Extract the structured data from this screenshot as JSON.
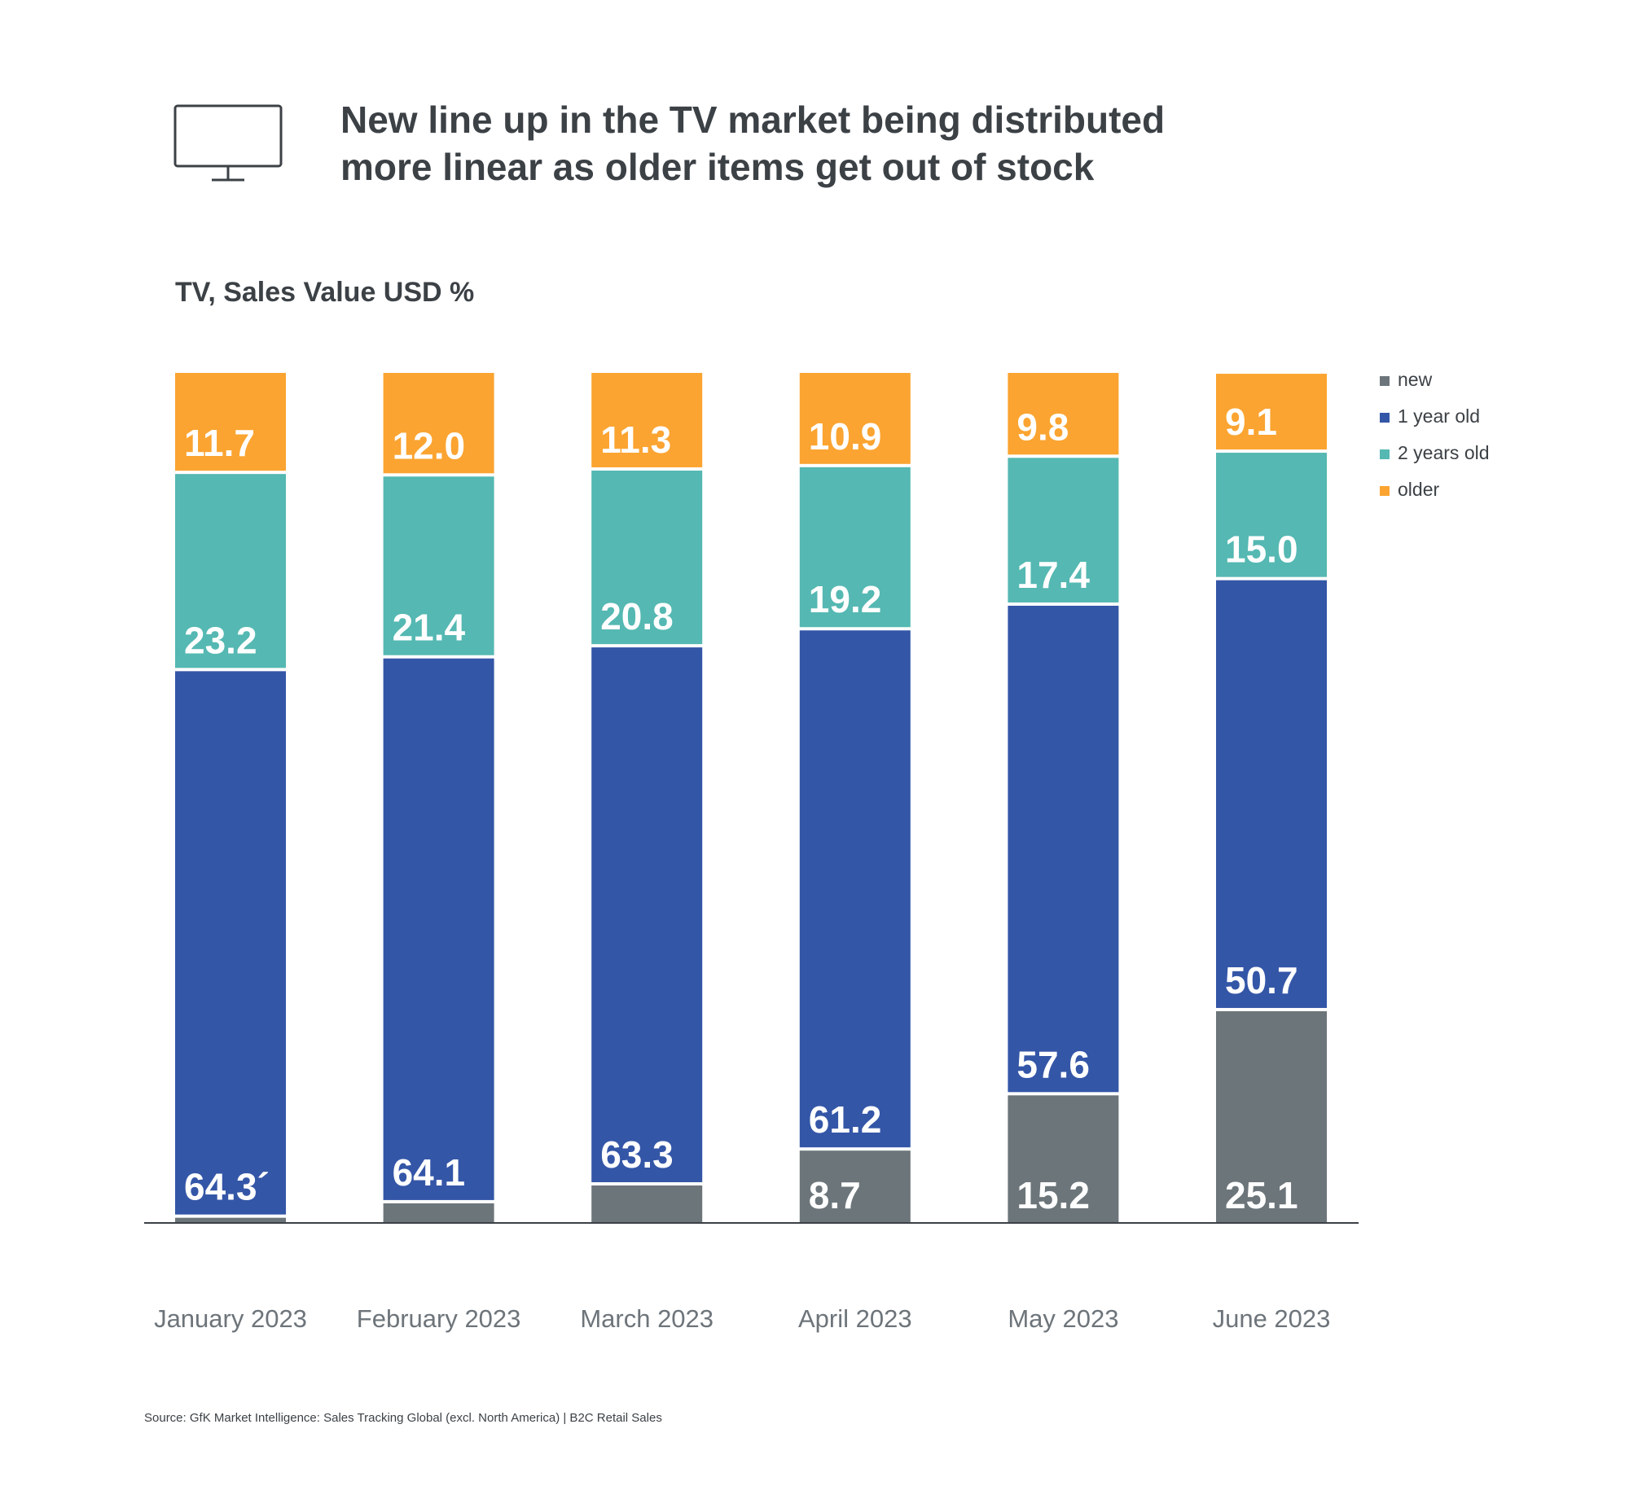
{
  "header": {
    "icon": "tv-monitor-icon",
    "title_line1": "New line up in the TV market being distributed",
    "title_line2": "more linear as older items get out of stock",
    "subtitle": "TV, Sales Value USD %"
  },
  "chart_data": {
    "type": "bar",
    "stacked": true,
    "title": "New line up in the TV market being distributed more linear as older items get out of stock",
    "subtitle": "TV, Sales Value USD %",
    "xlabel": "",
    "ylabel": "",
    "ylim": [
      0,
      100
    ],
    "grid": false,
    "legend_position": "right",
    "categories": [
      "January 2023",
      "February 2023",
      "March 2023",
      "April 2023",
      "May 2023",
      "June 2023"
    ],
    "series": [
      {
        "name": "new",
        "color": "#6c757a",
        "values": [
          0.8,
          2.5,
          4.6,
          8.7,
          15.2,
          25.1
        ],
        "labels": [
          "",
          "",
          "",
          "8.7",
          "15.2",
          "25.1"
        ]
      },
      {
        "name": "1 year old",
        "color": "#3456a7",
        "values": [
          64.3,
          64.1,
          63.3,
          61.2,
          57.6,
          50.7
        ],
        "labels": [
          "64.3´",
          "64.1",
          "63.3",
          "61.2",
          "57.6",
          "50.7"
        ]
      },
      {
        "name": "2 years old",
        "color": "#55b8b2",
        "values": [
          23.2,
          21.4,
          20.8,
          19.2,
          17.4,
          15.0
        ],
        "labels": [
          "23.2",
          "21.4",
          "20.8",
          "19.2",
          "17.4",
          "15.0"
        ]
      },
      {
        "name": "older",
        "color": "#fba431",
        "values": [
          11.7,
          12.0,
          11.3,
          10.9,
          9.8,
          9.1
        ],
        "labels": [
          "11.7",
          "12.0",
          "11.3",
          "10.9",
          "9.8",
          "9.1"
        ]
      }
    ]
  },
  "footer": {
    "source": "Source: GfK Market Intelligence: Sales Tracking Global (excl. North America) | B2C Retail Sales"
  }
}
